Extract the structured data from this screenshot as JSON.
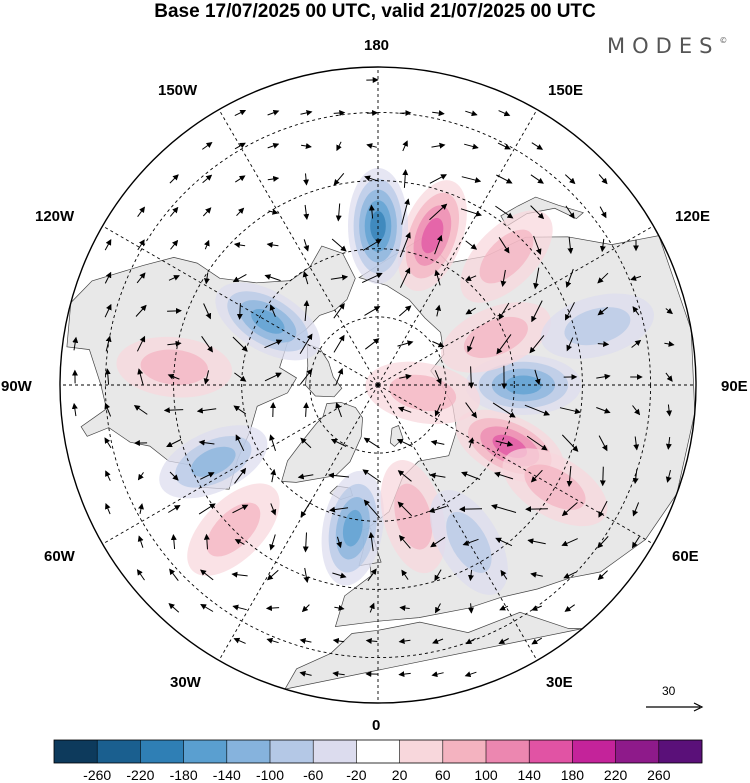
{
  "title": "Base 17/07/2025 00 UTC, valid 21/07/2025 00 UTC",
  "brand": {
    "name": "MODES",
    "mark": "©"
  },
  "longitude_labels": {
    "top": "180",
    "bottom": "0",
    "left": "90W",
    "right": "90E",
    "upper_left": "150W",
    "upper_left_2": "120W",
    "upper_right": "150E",
    "upper_right_2": "120E",
    "lower_left": "60W",
    "lower_left_2": "30W",
    "lower_right": "60E",
    "lower_right_2": "30E"
  },
  "reference_vector": {
    "value": "30"
  },
  "colors": {
    "land": "#e8e8e8",
    "ocean": "#ffffff",
    "coast": "#444444",
    "negative_scale": [
      "#0d3a5c",
      "#1a5f8f",
      "#2f7fb5",
      "#5a9fd0",
      "#86b3dd",
      "#b4c8e6",
      "#dcdcee"
    ],
    "neutral": "#ffffff",
    "positive_scale": [
      "#f8d7dc",
      "#f4b3c0",
      "#ec87b0",
      "#e153a4",
      "#c4239a",
      "#8e1a8a",
      "#5a1079"
    ]
  },
  "colorbar": {
    "labels": [
      "-260",
      "-220",
      "-180",
      "-140",
      "-100",
      "-60",
      "-20",
      "20",
      "60",
      "100",
      "140",
      "180",
      "220",
      "260"
    ],
    "colors": [
      "#0d3a5c",
      "#1a5f8f",
      "#2f7fb5",
      "#5a9fd0",
      "#86b3dd",
      "#b4c8e6",
      "#dcdcee",
      "#ffffff",
      "#f8d7dc",
      "#f4b3c0",
      "#ec87b0",
      "#e153a4",
      "#c4239a",
      "#8e1a8a",
      "#5a1079"
    ]
  },
  "anomalies": [
    {
      "sign": "+",
      "level": 3,
      "lon": 160,
      "lat": 55
    },
    {
      "sign": "-",
      "level": 4,
      "lon": 180,
      "lat": 55
    },
    {
      "sign": "+",
      "level": 1,
      "lon": 135,
      "lat": 50
    },
    {
      "sign": "-",
      "level": 3,
      "lon": -120,
      "lat": 62
    },
    {
      "sign": "+",
      "level": 1,
      "lon": -95,
      "lat": 45
    },
    {
      "sign": "-",
      "level": 2,
      "lon": -65,
      "lat": 50
    },
    {
      "sign": "+",
      "level": 1,
      "lon": -45,
      "lat": 45
    },
    {
      "sign": "-",
      "level": 3,
      "lon": -10,
      "lat": 58
    },
    {
      "sign": "+",
      "level": 1,
      "lon": 15,
      "lat": 60
    },
    {
      "sign": "-",
      "level": 1,
      "lon": 30,
      "lat": 50
    },
    {
      "sign": "+",
      "level": 3,
      "lon": 65,
      "lat": 58
    },
    {
      "sign": "+",
      "level": 1,
      "lon": 60,
      "lat": 45
    },
    {
      "sign": "-",
      "level": 3,
      "lon": 90,
      "lat": 58
    },
    {
      "sign": "+",
      "level": 1,
      "lon": 112,
      "lat": 62
    },
    {
      "sign": "-",
      "level": 1,
      "lon": 105,
      "lat": 40
    },
    {
      "sign": "+",
      "level": 1,
      "lon": 80,
      "lat": 80
    }
  ]
}
